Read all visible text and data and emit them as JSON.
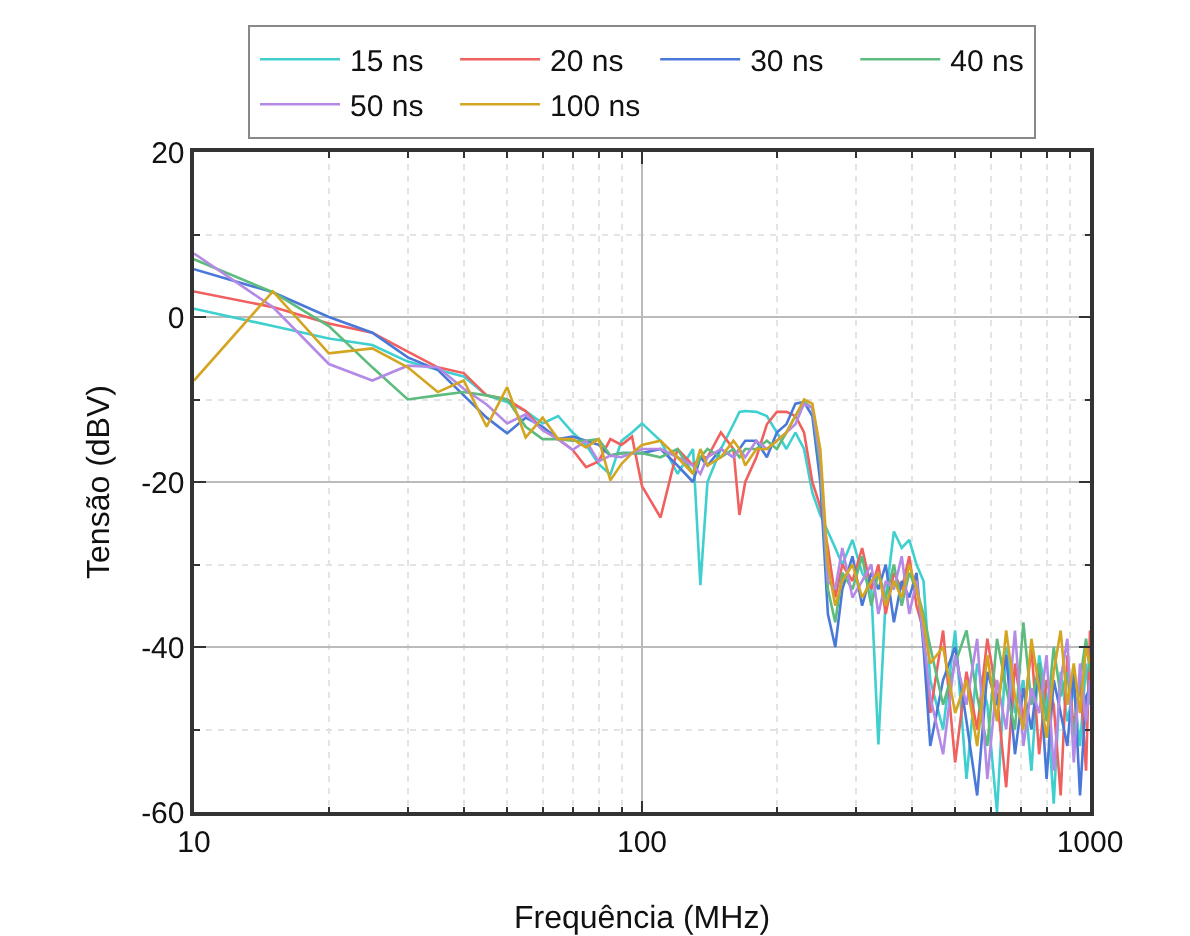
{
  "chart_data": {
    "type": "line",
    "xlabel": "Frequência (MHz)",
    "ylabel": "Tensão (dBV)",
    "log": "x",
    "grid": true,
    "legend": "top",
    "xlim": [
      10,
      1000
    ],
    "xticks": [
      10,
      100,
      1000
    ],
    "ylim": [
      -60,
      20
    ],
    "yticks": [
      -60,
      -40,
      -20,
      0,
      20
    ],
    "x": [
      10,
      15,
      20,
      25,
      30,
      35,
      40,
      45,
      50,
      55,
      60,
      65,
      70,
      75,
      80,
      85,
      90,
      95,
      100,
      110,
      120,
      130,
      135,
      140,
      150,
      160,
      165,
      170,
      180,
      190,
      200,
      210,
      220,
      230,
      240,
      250,
      260,
      270,
      280,
      295,
      310,
      325,
      337,
      350,
      365,
      380,
      395,
      410,
      425,
      440,
      470,
      500,
      530,
      560,
      590,
      620,
      650,
      680,
      710,
      740,
      770,
      800,
      830,
      860,
      890,
      920,
      950,
      980,
      1000
    ],
    "series": [
      {
        "name": "15 ns",
        "color": "#3fcfcf",
        "values": [
          1,
          -1.1,
          -2.6,
          -3.4,
          -5.4,
          -6.4,
          -7.2,
          -9.5,
          -10.3,
          -11.4,
          -12.9,
          -12,
          -14,
          -15.5,
          -17.8,
          -19.1,
          -15,
          -14,
          -12.9,
          -15,
          -19,
          -16,
          -32.5,
          -20,
          -16,
          -13,
          -11.5,
          -11.4,
          -11.5,
          -12,
          -14,
          -16,
          -14,
          -16,
          -21.3,
          -24,
          -26,
          -28,
          -30,
          -27,
          -31,
          -33,
          -51.8,
          -34,
          -26,
          -28,
          -27,
          -30,
          -32,
          -44,
          -50,
          -38,
          -56,
          -42,
          -47,
          -60,
          -40,
          -48,
          -44,
          -55,
          -41,
          -46,
          -59,
          -43,
          -49,
          -45,
          -52,
          -42,
          -47
        ]
      },
      {
        "name": "20 ns",
        "color": "#f0605f",
        "values": [
          3.1,
          1.2,
          -0.8,
          -1.9,
          -4.2,
          -6.1,
          -6.8,
          -9.5,
          -10,
          -11.4,
          -13.7,
          -14.8,
          -16.1,
          -18.2,
          -17.5,
          -14.8,
          -15.5,
          -14.5,
          -20.5,
          -24.3,
          -16,
          -18,
          -17,
          -17,
          -14,
          -16,
          -24,
          -20,
          -17,
          -13,
          -11.5,
          -11.5,
          -12,
          -14,
          -20,
          -23,
          -28,
          -34,
          -30,
          -32,
          -28,
          -33,
          -30,
          -36,
          -31,
          -33,
          -29,
          -35,
          -38,
          -48,
          -38,
          -54,
          -43,
          -50,
          -39,
          -46,
          -57,
          -42,
          -49,
          -40,
          -53,
          -44,
          -47,
          -58,
          -41,
          -50,
          -44,
          -55,
          -38
        ]
      },
      {
        "name": "30 ns",
        "color": "#4a78d8",
        "values": [
          5.8,
          3,
          0,
          -1.9,
          -4.9,
          -6.4,
          -9.5,
          -12.2,
          -14.1,
          -12.2,
          -13.3,
          -14.8,
          -14.5,
          -15,
          -15.5,
          -16.8,
          -16.5,
          -16.5,
          -16.5,
          -16,
          -18,
          -20,
          -17,
          -18,
          -16,
          -17,
          -16,
          -15,
          -15,
          -17,
          -14,
          -13,
          -10.5,
          -10.3,
          -12,
          -20,
          -36,
          -40,
          -33,
          -29,
          -35,
          -31,
          -33,
          -30,
          -37,
          -32,
          -34,
          -31,
          -40,
          -52,
          -44,
          -40,
          -49,
          -58,
          -43,
          -47,
          -41,
          -53,
          -45,
          -50,
          -42,
          -56,
          -44,
          -48,
          -52,
          -43,
          -58,
          -46,
          -45
        ]
      },
      {
        "name": "40 ns",
        "color": "#5dbb7e",
        "values": [
          7,
          3,
          -1.1,
          -6.1,
          -10,
          -9.5,
          -9.1,
          -9.5,
          -10,
          -13.3,
          -14.8,
          -14.8,
          -15,
          -15,
          -14.8,
          -16.8,
          -16.5,
          -16.5,
          -16.5,
          -17,
          -16,
          -19,
          -17,
          -16,
          -17,
          -16,
          -17,
          -16,
          -16,
          -15,
          -16,
          -14,
          -12,
          -10.3,
          -11,
          -18,
          -33,
          -37,
          -31,
          -33,
          -29,
          -35,
          -31,
          -34,
          -30,
          -35,
          -31,
          -33,
          -36,
          -40,
          -47,
          -42,
          -38,
          -46,
          -52,
          -39,
          -45,
          -50,
          -37,
          -47,
          -42,
          -49,
          -40,
          -46,
          -43,
          -51,
          -44,
          -39,
          -43
        ]
      },
      {
        "name": "50 ns",
        "color": "#b48ae6",
        "values": [
          7.7,
          1.2,
          -5.7,
          -7.7,
          -5.9,
          -6.1,
          -8.7,
          -10.6,
          -12.9,
          -11.8,
          -13.7,
          -14.8,
          -16.1,
          -15,
          -17.5,
          -16.8,
          -17,
          -16.5,
          -16,
          -16,
          -17,
          -18,
          -19,
          -17,
          -16,
          -17,
          -16,
          -17,
          -15,
          -16,
          -15,
          -14,
          -13,
          -10.5,
          -11,
          -17,
          -32,
          -33,
          -28,
          -34,
          -32,
          -30,
          -36,
          -32,
          -33,
          -29,
          -36,
          -32,
          -39,
          -46,
          -53,
          -41,
          -47,
          -39,
          -56,
          -44,
          -50,
          -38,
          -52,
          -45,
          -48,
          -41,
          -55,
          -44,
          -39,
          -54,
          -42,
          -49,
          -44
        ]
      },
      {
        "name": "100 ns",
        "color": "#d4a520",
        "values": [
          -7.7,
          3.1,
          -4.4,
          -3.8,
          -6.1,
          -9.1,
          -7.7,
          -13.3,
          -8.5,
          -14.6,
          -12.2,
          -14.8,
          -14.8,
          -15.8,
          -14.8,
          -19.8,
          -17.8,
          -16.5,
          -15.5,
          -15,
          -17,
          -19,
          -16,
          -18,
          -17,
          -15,
          -16,
          -18,
          -16,
          -16,
          -15,
          -14,
          -12,
          -10,
          -10.5,
          -16,
          -30,
          -35,
          -32,
          -30,
          -34,
          -32,
          -31,
          -35,
          -32,
          -34,
          -30,
          -33,
          -37,
          -42,
          -40,
          -48,
          -44,
          -52,
          -41,
          -49,
          -38,
          -46,
          -50,
          -39,
          -45,
          -51,
          -43,
          -38,
          -47,
          -42,
          -48,
          -40,
          -42
        ]
      }
    ]
  }
}
